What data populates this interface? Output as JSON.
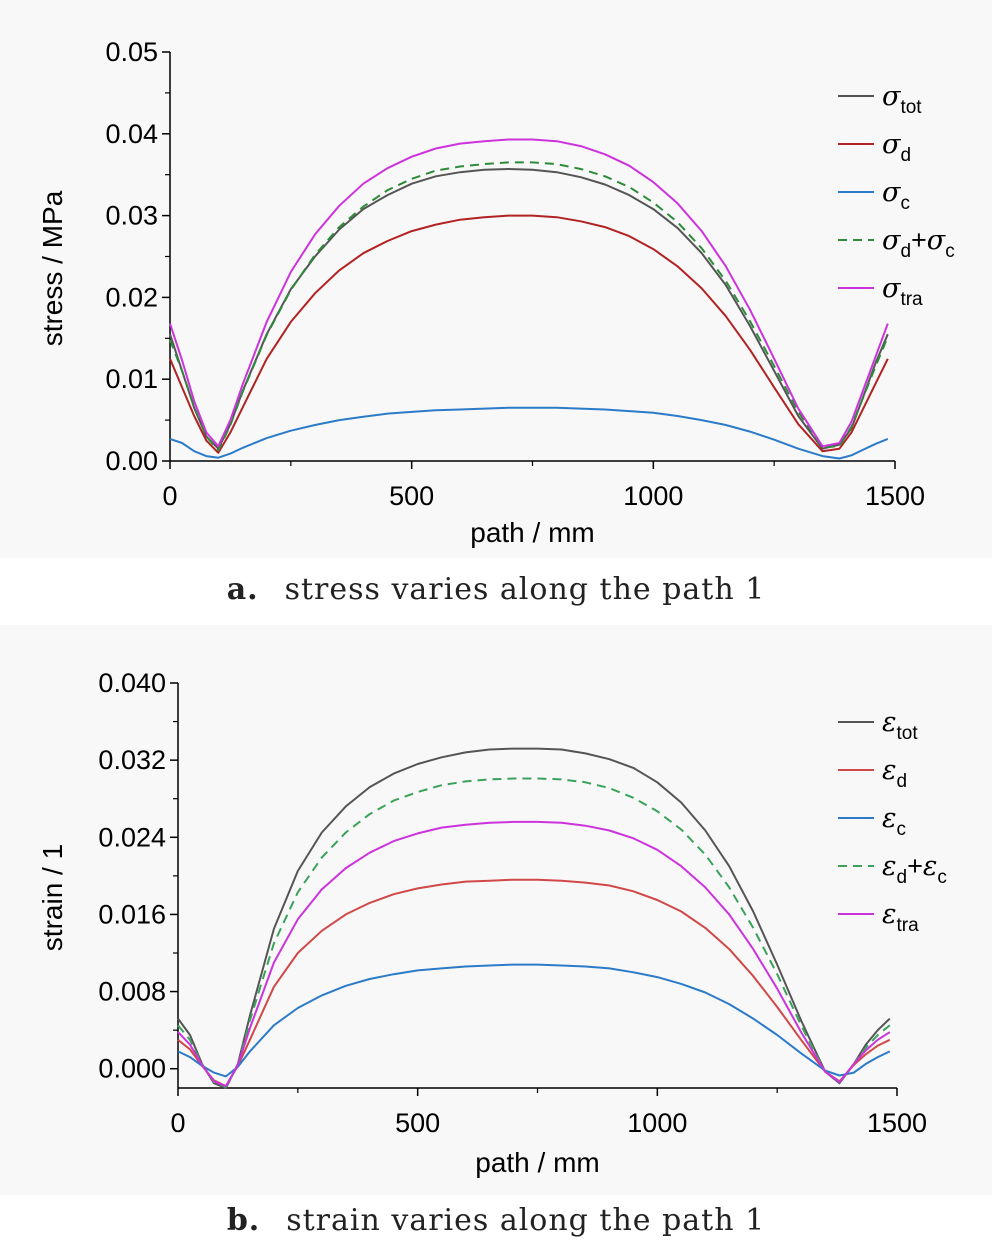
{
  "chart_data": [
    {
      "type": "line",
      "caption_letter": "a.",
      "caption_text": "stress varies along the path 1",
      "xlabel": "path / mm",
      "ylabel": "stress / MPa",
      "xlim": [
        0,
        1500
      ],
      "ylim": [
        0,
        0.05
      ],
      "xticks": [
        "0",
        "500",
        "1000",
        "1500"
      ],
      "yticks": [
        "0.00",
        "0.01",
        "0.02",
        "0.03",
        "0.04",
        "0.05"
      ],
      "legend_position": "top-right",
      "series": [
        {
          "symbol": "σ",
          "sub": "tot",
          "color": "#555555",
          "dash": false,
          "x": [
            0,
            25,
            50,
            75,
            100,
            125,
            150,
            200,
            250,
            300,
            350,
            400,
            450,
            500,
            550,
            600,
            650,
            700,
            750,
            800,
            850,
            900,
            950,
            1000,
            1050,
            1100,
            1150,
            1200,
            1250,
            1300,
            1350,
            1385,
            1410,
            1435,
            1460,
            1485
          ],
          "y": [
            0.0155,
            0.011,
            0.0065,
            0.003,
            0.0015,
            0.0045,
            0.0085,
            0.0155,
            0.021,
            0.025,
            0.0283,
            0.0308,
            0.0325,
            0.0339,
            0.0348,
            0.0353,
            0.0356,
            0.0357,
            0.0356,
            0.0353,
            0.0347,
            0.0338,
            0.0325,
            0.0308,
            0.0285,
            0.0254,
            0.0215,
            0.0165,
            0.011,
            0.0055,
            0.0015,
            0.002,
            0.004,
            0.008,
            0.012,
            0.0155
          ]
        },
        {
          "symbol": "σ",
          "sub": "d",
          "color": "#b22222",
          "dash": false,
          "x": [
            0,
            25,
            50,
            75,
            100,
            125,
            150,
            200,
            250,
            300,
            350,
            400,
            450,
            500,
            550,
            600,
            650,
            700,
            750,
            800,
            850,
            900,
            950,
            1000,
            1050,
            1100,
            1150,
            1200,
            1250,
            1300,
            1350,
            1385,
            1410,
            1435,
            1460,
            1485
          ],
          "y": [
            0.0125,
            0.009,
            0.0055,
            0.0025,
            0.001,
            0.0035,
            0.0065,
            0.0125,
            0.017,
            0.0205,
            0.0233,
            0.0254,
            0.0269,
            0.0281,
            0.0289,
            0.0295,
            0.0298,
            0.03,
            0.03,
            0.0298,
            0.0293,
            0.0286,
            0.0275,
            0.0259,
            0.0238,
            0.0211,
            0.0177,
            0.0136,
            0.009,
            0.0045,
            0.0012,
            0.0015,
            0.0035,
            0.0065,
            0.0095,
            0.0125
          ]
        },
        {
          "symbol": "σ",
          "sub": "c",
          "color": "#2b7bc9",
          "dash": false,
          "x": [
            0,
            25,
            50,
            75,
            100,
            125,
            150,
            200,
            250,
            300,
            350,
            400,
            450,
            500,
            550,
            600,
            650,
            700,
            750,
            800,
            850,
            900,
            950,
            1000,
            1050,
            1100,
            1150,
            1200,
            1250,
            1300,
            1350,
            1385,
            1410,
            1435,
            1460,
            1485
          ],
          "y": [
            0.0027,
            0.0022,
            0.0012,
            0.0006,
            0.0004,
            0.0009,
            0.0016,
            0.0028,
            0.0037,
            0.0044,
            0.005,
            0.0054,
            0.0058,
            0.006,
            0.0062,
            0.0063,
            0.0064,
            0.0065,
            0.0065,
            0.0065,
            0.0064,
            0.0063,
            0.0061,
            0.0059,
            0.0055,
            0.005,
            0.0044,
            0.0036,
            0.0026,
            0.0015,
            0.0006,
            0.0003,
            0.0007,
            0.0014,
            0.0021,
            0.0027
          ]
        },
        {
          "symbol": "σ",
          "sub": "d",
          "symbol2": "σ",
          "sub2": "c",
          "color": "#2e8b3a",
          "dash": true,
          "x": [
            0,
            25,
            50,
            75,
            100,
            125,
            150,
            200,
            250,
            300,
            350,
            400,
            450,
            500,
            550,
            600,
            650,
            700,
            750,
            800,
            850,
            900,
            950,
            1000,
            1050,
            1100,
            1150,
            1200,
            1250,
            1300,
            1350,
            1385,
            1410,
            1435,
            1460,
            1485
          ],
          "y": [
            0.0148,
            0.011,
            0.0066,
            0.003,
            0.0013,
            0.0044,
            0.0084,
            0.0154,
            0.0209,
            0.0252,
            0.0286,
            0.0311,
            0.0331,
            0.0345,
            0.0355,
            0.036,
            0.0363,
            0.0365,
            0.0365,
            0.0363,
            0.0357,
            0.0348,
            0.0335,
            0.0316,
            0.0292,
            0.026,
            0.022,
            0.0171,
            0.0116,
            0.006,
            0.0017,
            0.0018,
            0.0042,
            0.0079,
            0.0116,
            0.0152
          ]
        },
        {
          "symbol": "σ",
          "sub": "tra",
          "color": "#cc33dd",
          "dash": false,
          "x": [
            0,
            25,
            50,
            75,
            100,
            125,
            150,
            200,
            250,
            300,
            350,
            400,
            450,
            500,
            550,
            600,
            650,
            700,
            750,
            800,
            850,
            900,
            950,
            1000,
            1050,
            1100,
            1150,
            1200,
            1250,
            1300,
            1350,
            1385,
            1410,
            1435,
            1460,
            1485
          ],
          "y": [
            0.0168,
            0.0123,
            0.0073,
            0.0035,
            0.0018,
            0.005,
            0.0093,
            0.017,
            0.0231,
            0.0277,
            0.0312,
            0.0339,
            0.0358,
            0.0372,
            0.0382,
            0.0388,
            0.0391,
            0.0393,
            0.0393,
            0.0391,
            0.0385,
            0.0375,
            0.0361,
            0.0341,
            0.0315,
            0.0281,
            0.0238,
            0.0185,
            0.0125,
            0.0064,
            0.0018,
            0.0022,
            0.0048,
            0.0088,
            0.0128,
            0.0168
          ]
        }
      ]
    },
    {
      "type": "line",
      "caption_letter": "b.",
      "caption_text": "strain varies along the path 1",
      "xlabel": "path / mm",
      "ylabel": "strain / 1",
      "xlim": [
        0,
        1500
      ],
      "ylim": [
        -0.002,
        0.04
      ],
      "xticks": [
        "0",
        "500",
        "1000",
        "1500"
      ],
      "yticks": [
        "0.000",
        "0.008",
        "0.016",
        "0.024",
        "0.032",
        "0.040"
      ],
      "legend_position": "top-right",
      "series": [
        {
          "symbol": "ε",
          "sub": "tot",
          "color": "#555555",
          "dash": false,
          "x": [
            0,
            25,
            50,
            75,
            100,
            125,
            150,
            200,
            250,
            300,
            350,
            400,
            450,
            500,
            550,
            600,
            650,
            700,
            750,
            800,
            850,
            900,
            950,
            1000,
            1050,
            1100,
            1150,
            1200,
            1250,
            1300,
            1350,
            1380,
            1410,
            1435,
            1460,
            1485
          ],
          "y": [
            0.0052,
            0.0035,
            0.0005,
            -0.0015,
            -0.002,
            0.0005,
            0.0055,
            0.0145,
            0.0205,
            0.0245,
            0.0272,
            0.0292,
            0.0306,
            0.0316,
            0.0323,
            0.0328,
            0.0331,
            0.0332,
            0.0332,
            0.0331,
            0.0327,
            0.0321,
            0.0312,
            0.0297,
            0.0276,
            0.0247,
            0.021,
            0.0163,
            0.0108,
            0.005,
            -0.0003,
            -0.0015,
            0.0005,
            0.0025,
            0.004,
            0.0052
          ]
        },
        {
          "symbol": "ε",
          "sub": "d",
          "color": "#d04848",
          "dash": false,
          "x": [
            0,
            25,
            50,
            75,
            100,
            125,
            150,
            200,
            250,
            300,
            350,
            400,
            450,
            500,
            550,
            600,
            650,
            700,
            750,
            800,
            850,
            900,
            950,
            1000,
            1050,
            1100,
            1150,
            1200,
            1250,
            1300,
            1350,
            1380,
            1410,
            1435,
            1460,
            1485
          ],
          "y": [
            0.003,
            0.002,
            0.0003,
            -0.0012,
            -0.0018,
            0.0003,
            0.003,
            0.0085,
            0.012,
            0.0143,
            0.016,
            0.0172,
            0.0181,
            0.0187,
            0.0191,
            0.0194,
            0.0195,
            0.0196,
            0.0196,
            0.0195,
            0.0193,
            0.019,
            0.0184,
            0.0175,
            0.0163,
            0.0146,
            0.0124,
            0.0096,
            0.0064,
            0.003,
            -0.0003,
            -0.0013,
            0.0004,
            0.0015,
            0.0024,
            0.003
          ]
        },
        {
          "symbol": "ε",
          "sub": "c",
          "color": "#2b7bc9",
          "dash": false,
          "x": [
            0,
            25,
            50,
            75,
            100,
            125,
            150,
            200,
            250,
            300,
            350,
            400,
            450,
            500,
            550,
            600,
            650,
            700,
            750,
            800,
            850,
            900,
            950,
            1000,
            1050,
            1100,
            1150,
            1200,
            1250,
            1300,
            1350,
            1380,
            1410,
            1435,
            1460,
            1485
          ],
          "y": [
            0.0018,
            0.0012,
            0.0003,
            -0.0004,
            -0.0008,
            0.0002,
            0.0018,
            0.0045,
            0.0063,
            0.0076,
            0.0086,
            0.0093,
            0.0098,
            0.0102,
            0.0104,
            0.0106,
            0.0107,
            0.0108,
            0.0108,
            0.0107,
            0.0106,
            0.0104,
            0.01,
            0.0095,
            0.0088,
            0.0079,
            0.0067,
            0.0052,
            0.0035,
            0.0016,
            -0.0002,
            -0.0007,
            -0.0004,
            0.0005,
            0.0012,
            0.0018
          ]
        },
        {
          "symbol": "ε",
          "sub": "d",
          "symbol2": "ε",
          "sub2": "c",
          "color": "#3aa25a",
          "dash": true,
          "x": [
            0,
            25,
            50,
            75,
            100,
            125,
            150,
            200,
            250,
            300,
            350,
            400,
            450,
            500,
            550,
            600,
            650,
            700,
            750,
            800,
            850,
            900,
            950,
            1000,
            1050,
            1100,
            1150,
            1200,
            1250,
            1300,
            1350,
            1380,
            1410,
            1435,
            1460,
            1485
          ],
          "y": [
            0.0045,
            0.003,
            0.0005,
            -0.0014,
            -0.0019,
            0.0004,
            0.005,
            0.013,
            0.0183,
            0.0219,
            0.0245,
            0.0264,
            0.0278,
            0.0287,
            0.0294,
            0.0298,
            0.03,
            0.0301,
            0.0301,
            0.03,
            0.0297,
            0.0291,
            0.0281,
            0.0267,
            0.0248,
            0.0222,
            0.0188,
            0.0146,
            0.0098,
            0.0045,
            -0.0003,
            -0.0014,
            0.0005,
            0.0022,
            0.0035,
            0.0045
          ]
        },
        {
          "symbol": "ε",
          "sub": "tra",
          "color": "#cc33dd",
          "dash": false,
          "x": [
            0,
            25,
            50,
            75,
            100,
            125,
            150,
            200,
            250,
            300,
            350,
            400,
            450,
            500,
            550,
            600,
            650,
            700,
            750,
            800,
            850,
            900,
            950,
            1000,
            1050,
            1100,
            1150,
            1200,
            1250,
            1300,
            1350,
            1380,
            1410,
            1435,
            1460,
            1485
          ],
          "y": [
            0.0038,
            0.0025,
            0.0004,
            -0.0013,
            -0.0018,
            0.0004,
            0.0042,
            0.011,
            0.0155,
            0.0186,
            0.0208,
            0.0224,
            0.0236,
            0.0244,
            0.025,
            0.0253,
            0.0255,
            0.0256,
            0.0256,
            0.0255,
            0.0252,
            0.0247,
            0.0239,
            0.0227,
            0.021,
            0.0188,
            0.016,
            0.0124,
            0.0083,
            0.0038,
            -0.0003,
            -0.0014,
            0.0005,
            0.0019,
            0.003,
            0.0038
          ]
        }
      ]
    }
  ]
}
